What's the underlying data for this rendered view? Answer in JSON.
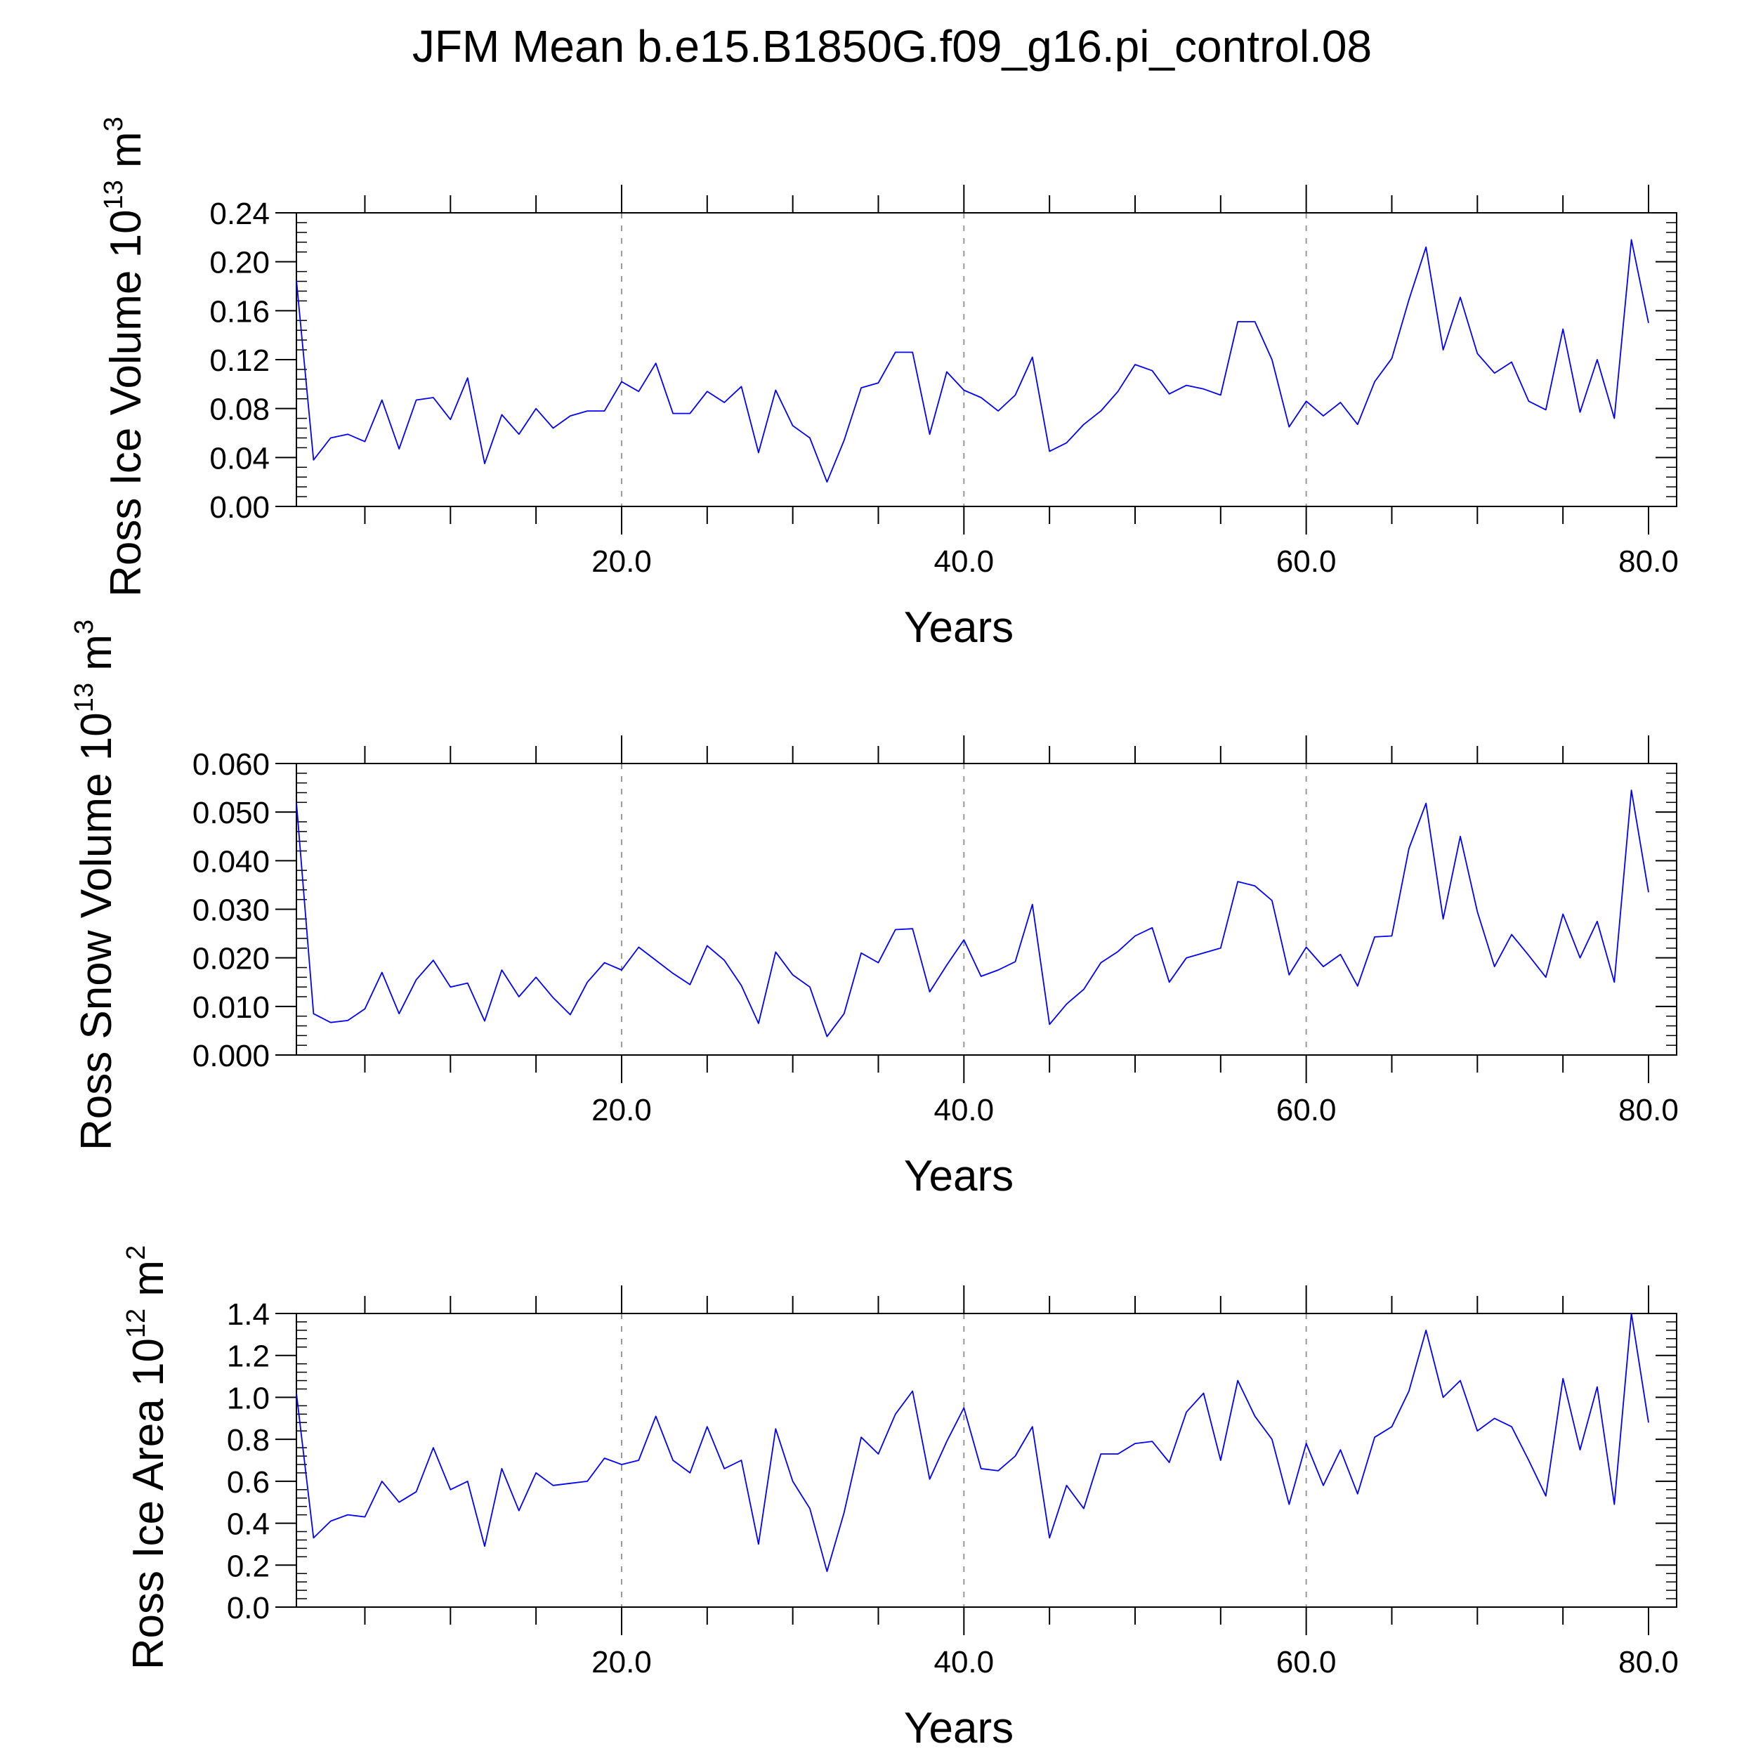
{
  "figure": {
    "title": "JFM Mean b.e15.B1850G.f09_g16.pi_control.08"
  },
  "chart_data": [
    {
      "type": "line",
      "title": "",
      "xlabel": "Years",
      "ylabel": {
        "text": "Ross Ice Volume 10",
        "exp": "13",
        "unit": " m",
        "unit_exp": "3"
      },
      "xlim": [
        1,
        80
      ],
      "ylim": [
        0,
        0.24
      ],
      "xticks": [
        20,
        40,
        60,
        80
      ],
      "xtick_labels": [
        "20.0",
        "40.0",
        "60.0",
        "80.0"
      ],
      "yticks": [
        0,
        0.04,
        0.08,
        0.12,
        0.16,
        0.2,
        0.24
      ],
      "ytick_labels": [
        "0.00",
        "0.04",
        "0.08",
        "0.12",
        "0.16",
        "0.20",
        "0.24"
      ],
      "grid": "vertical dashed at major x ticks",
      "series": [
        {
          "color": "#0000ff",
          "x": [
            1,
            2,
            3,
            4,
            5,
            6,
            7,
            8,
            9,
            10,
            11,
            12,
            13,
            14,
            15,
            16,
            17,
            18,
            19,
            20,
            21,
            22,
            23,
            24,
            25,
            26,
            27,
            28,
            29,
            30,
            31,
            32,
            33,
            34,
            35,
            36,
            37,
            38,
            39,
            40,
            41,
            42,
            43,
            44,
            45,
            46,
            47,
            48,
            49,
            50,
            51,
            52,
            53,
            54,
            55,
            56,
            57,
            58,
            59,
            60,
            61,
            62,
            63,
            64,
            65,
            66,
            67,
            68,
            69,
            70,
            71,
            72,
            73,
            74,
            75,
            76,
            77,
            78,
            79,
            80
          ],
          "y": [
            0.185,
            0.038,
            0.056,
            0.059,
            0.053,
            0.087,
            0.047,
            0.087,
            0.089,
            0.071,
            0.105,
            0.035,
            0.075,
            0.059,
            0.08,
            0.064,
            0.074,
            0.078,
            0.078,
            0.102,
            0.094,
            0.117,
            0.076,
            0.076,
            0.094,
            0.085,
            0.098,
            0.044,
            0.095,
            0.066,
            0.056,
            0.02,
            0.054,
            0.097,
            0.101,
            0.126,
            0.126,
            0.059,
            0.11,
            0.095,
            0.089,
            0.078,
            0.091,
            0.122,
            0.045,
            0.052,
            0.067,
            0.078,
            0.094,
            0.116,
            0.111,
            0.092,
            0.099,
            0.096,
            0.091,
            0.151,
            0.151,
            0.12,
            0.065,
            0.086,
            0.074,
            0.085,
            0.067,
            0.102,
            0.121,
            0.169,
            0.212,
            0.128,
            0.171,
            0.125,
            0.109,
            0.118,
            0.086,
            0.079,
            0.145,
            0.077,
            0.12,
            0.072,
            0.218,
            0.15
          ]
        }
      ]
    },
    {
      "type": "line",
      "title": "",
      "xlabel": "Years",
      "ylabel": {
        "text": "Ross Snow Volume 10",
        "exp": "13",
        "unit": " m",
        "unit_exp": "3"
      },
      "xlim": [
        1,
        80
      ],
      "ylim": [
        0,
        0.06
      ],
      "xticks": [
        20,
        40,
        60,
        80
      ],
      "xtick_labels": [
        "20.0",
        "40.0",
        "60.0",
        "80.0"
      ],
      "yticks": [
        0,
        0.01,
        0.02,
        0.03,
        0.04,
        0.05,
        0.06
      ],
      "ytick_labels": [
        "0.000",
        "0.010",
        "0.020",
        "0.030",
        "0.040",
        "0.050",
        "0.060"
      ],
      "grid": "vertical dashed at major x ticks",
      "series": [
        {
          "color": "#0000ff",
          "x": [
            1,
            2,
            3,
            4,
            5,
            6,
            7,
            8,
            9,
            10,
            11,
            12,
            13,
            14,
            15,
            16,
            17,
            18,
            19,
            20,
            21,
            22,
            23,
            24,
            25,
            26,
            27,
            28,
            29,
            30,
            31,
            32,
            33,
            34,
            35,
            36,
            37,
            38,
            39,
            40,
            41,
            42,
            43,
            44,
            45,
            46,
            47,
            48,
            49,
            50,
            51,
            52,
            53,
            54,
            55,
            56,
            57,
            58,
            59,
            60,
            61,
            62,
            63,
            64,
            65,
            66,
            67,
            68,
            69,
            70,
            71,
            72,
            73,
            74,
            75,
            76,
            77,
            78,
            79,
            80
          ],
          "y": [
            0.052,
            0.0085,
            0.0067,
            0.0071,
            0.0095,
            0.017,
            0.0085,
            0.0155,
            0.0195,
            0.014,
            0.0148,
            0.007,
            0.0175,
            0.012,
            0.016,
            0.0118,
            0.0083,
            0.015,
            0.019,
            0.0175,
            0.0222,
            0.0195,
            0.0168,
            0.0145,
            0.0225,
            0.0195,
            0.0143,
            0.0065,
            0.0212,
            0.0165,
            0.014,
            0.0038,
            0.0085,
            0.021,
            0.019,
            0.0258,
            0.026,
            0.013,
            0.0185,
            0.0237,
            0.0162,
            0.0175,
            0.0192,
            0.031,
            0.0063,
            0.0105,
            0.0135,
            0.019,
            0.0213,
            0.0245,
            0.0262,
            0.015,
            0.02,
            0.021,
            0.022,
            0.0357,
            0.0348,
            0.0318,
            0.0165,
            0.0222,
            0.0182,
            0.0207,
            0.0142,
            0.0243,
            0.0245,
            0.0425,
            0.0518,
            0.028,
            0.045,
            0.0295,
            0.0182,
            0.0248,
            0.0205,
            0.016,
            0.029,
            0.02,
            0.0275,
            0.015,
            0.0545,
            0.0335
          ]
        }
      ]
    },
    {
      "type": "line",
      "title": "",
      "xlabel": "Years",
      "ylabel": {
        "text": "Ross Ice Area 10",
        "exp": "12",
        "unit": " m",
        "unit_exp": "2"
      },
      "xlim": [
        1,
        80
      ],
      "ylim": [
        0,
        1.4
      ],
      "xticks": [
        20,
        40,
        60,
        80
      ],
      "xtick_labels": [
        "20.0",
        "40.0",
        "60.0",
        "80.0"
      ],
      "yticks": [
        0,
        0.2,
        0.4,
        0.6,
        0.8,
        1.0,
        1.2,
        1.4
      ],
      "ytick_labels": [
        "0.0",
        "0.2",
        "0.4",
        "0.6",
        "0.8",
        "1.0",
        "1.2",
        "1.4"
      ],
      "grid": "vertical dashed at major x ticks",
      "series": [
        {
          "color": "#0000ff",
          "x": [
            1,
            2,
            3,
            4,
            5,
            6,
            7,
            8,
            9,
            10,
            11,
            12,
            13,
            14,
            15,
            16,
            17,
            18,
            19,
            20,
            21,
            22,
            23,
            24,
            25,
            26,
            27,
            28,
            29,
            30,
            31,
            32,
            33,
            34,
            35,
            36,
            37,
            38,
            39,
            40,
            41,
            42,
            43,
            44,
            45,
            46,
            47,
            48,
            49,
            50,
            51,
            52,
            53,
            54,
            55,
            56,
            57,
            58,
            59,
            60,
            61,
            62,
            63,
            64,
            65,
            66,
            67,
            68,
            69,
            70,
            71,
            72,
            73,
            74,
            75,
            76,
            77,
            78,
            79,
            80
          ],
          "y": [
            1.02,
            0.33,
            0.41,
            0.44,
            0.43,
            0.6,
            0.5,
            0.55,
            0.76,
            0.56,
            0.6,
            0.29,
            0.66,
            0.46,
            0.64,
            0.58,
            0.59,
            0.6,
            0.71,
            0.68,
            0.7,
            0.91,
            0.7,
            0.64,
            0.86,
            0.66,
            0.7,
            0.3,
            0.85,
            0.6,
            0.47,
            0.17,
            0.45,
            0.81,
            0.73,
            0.92,
            1.03,
            0.61,
            0.79,
            0.95,
            0.66,
            0.65,
            0.72,
            0.86,
            0.33,
            0.58,
            0.47,
            0.73,
            0.73,
            0.78,
            0.79,
            0.69,
            0.93,
            1.02,
            0.7,
            1.08,
            0.91,
            0.8,
            0.49,
            0.78,
            0.58,
            0.75,
            0.54,
            0.81,
            0.86,
            1.03,
            1.32,
            1.0,
            1.08,
            0.84,
            0.9,
            0.86,
            0.7,
            0.53,
            1.09,
            0.75,
            1.05,
            0.49,
            1.4,
            0.88
          ]
        }
      ]
    }
  ]
}
